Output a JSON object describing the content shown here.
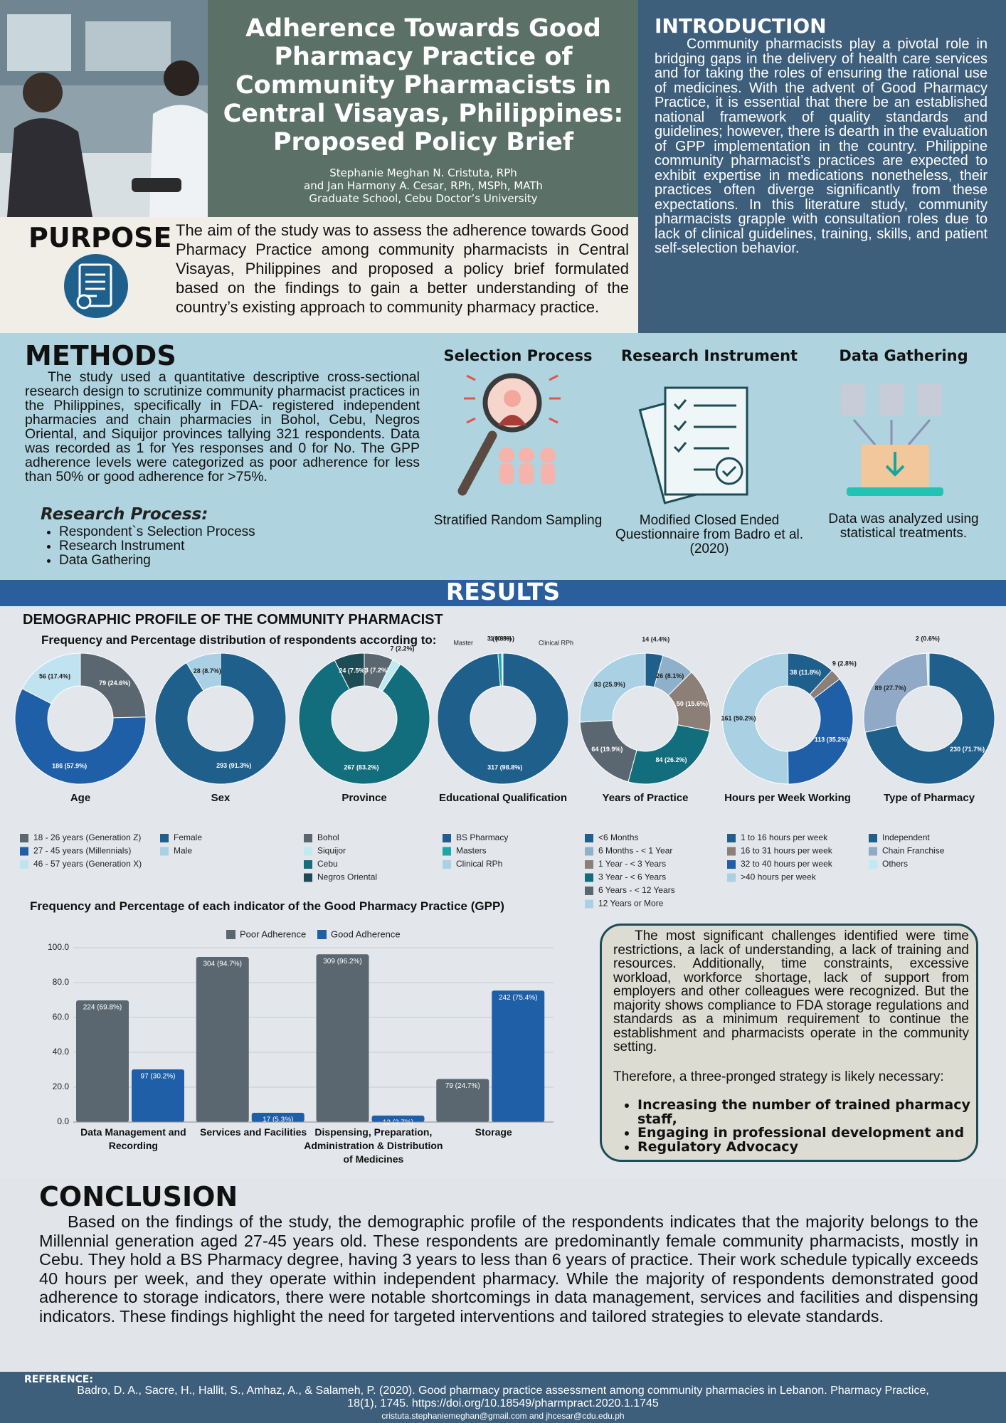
{
  "header": {
    "title": "Adherence Towards Good Pharmacy Practice of Community Pharmacists in Central Visayas, Philippines: Proposed Policy Brief",
    "authors": [
      "Stephanie Meghan N. Cristuta, RPh",
      "and Jan Harmony A. Cesar, RPh, MSPh, MATh",
      "Graduate School, Cebu Doctor’s University"
    ]
  },
  "introduction": {
    "heading": "INTRODUCTION",
    "text": "Community pharmacists play a pivotal role in bridging gaps in the delivery  of health care services and for taking the roles of ensuring the rational use of medicines. With the advent of Good Pharmacy Practice, it is essential that there be an established national framework of quality standards and guidelines; however, there is dearth in the evaluation of GPP implementation in the country. Philippine community pharmacist’s practices are expected to exhibit expertise in medications nonetheless, their practices often diverge significantly from these expectations. In this literature study, community pharmacists grapple with consultation roles due to lack of clinical guidelines, training, skills, and patient self-selection behavior."
  },
  "purpose": {
    "heading": "PURPOSE",
    "text": "The aim of the study was to assess the adherence towards Good Pharmacy Practice among community pharmacists in Central Visayas, Philippines and proposed a policy brief formulated based on the findings to gain a better understanding of the country’s existing approach to community pharmacy practice."
  },
  "methods": {
    "heading": "METHODS",
    "text": "The study used a quantitative descriptive cross-sectional research design to  scrutinize community pharmacist practices in the Philippines, specifically in FDA- registered independent pharmacies and chain pharmacies in Bohol, Cebu, Negros Oriental, and Siquijor provinces tallying 321 respondents. Data was recorded as 1 for Yes responses and 0 for No. The GPP adherence levels were categorized as poor adherence for less than 50% or good adherence for >75%.",
    "research_process": {
      "heading": "Research Process:",
      "items": [
        "Respondent`s Selection Process",
        "Research Instrument",
        "Data Gathering"
      ]
    },
    "panels": [
      {
        "heading": "Selection Process",
        "caption": "Stratified Random Sampling"
      },
      {
        "heading": "Research Instrument",
        "caption": "Modified Closed Ended Questionnaire from Badro et al. (2020)"
      },
      {
        "heading": "Data Gathering",
        "caption": "Data was analyzed using statistical treatments."
      }
    ]
  },
  "results": {
    "heading": "RESULTS",
    "demographic_heading": "DEMOGRAPHIC PROFILE OF THE COMMUNITY PHARMACIST",
    "demographic_subheading": "Frequency and Percentage distribution of respondents according to:"
  },
  "chart_data": [
    {
      "type": "pie",
      "title": "Age",
      "categories": [
        "18 - 26 years (Generation Z)",
        "27 - 45 years (Millennials)",
        "46 - 57 years (Generation X)"
      ],
      "values": [
        79,
        186,
        56
      ],
      "value_labels": [
        "79 (24.6%)",
        "186 (57.9%)",
        "56 (17.4%)"
      ],
      "colors": [
        "#5b6770",
        "#1f5fa8",
        "#bfe3f0"
      ]
    },
    {
      "type": "pie",
      "title": "Sex",
      "categories": [
        "Female",
        "Male"
      ],
      "values": [
        293,
        28
      ],
      "value_labels": [
        "293 (91.3%)",
        "28 (8.7%)"
      ],
      "colors": [
        "#1f5f8b",
        "#a9d0e3"
      ]
    },
    {
      "type": "pie",
      "title": "Province",
      "categories": [
        "Bohol",
        "Siquijor",
        "Cebu",
        "Negros Oriental"
      ],
      "values": [
        23,
        7,
        267,
        24
      ],
      "value_labels": [
        "23 (7.2%)",
        "7 (2.2%)",
        "267 (83.2%)",
        "24 (7.5%)"
      ],
      "colors": [
        "#5b6770",
        "#bfeaf2",
        "#126e7c",
        "#1d4c55"
      ]
    },
    {
      "type": "pie",
      "title": "Educational Qualification",
      "categories": [
        "BS Pharmacy",
        "Masters",
        "Clinical RPh"
      ],
      "values": [
        317,
        3,
        1
      ],
      "value_labels": [
        "317 (98.8%)",
        "3 (0.9%)",
        "1 (0.3%)"
      ],
      "colors": [
        "#1f5f8b",
        "#1aa7a7",
        "#a9d0e3"
      ],
      "annotations": [
        "Master",
        "Clinical RPh"
      ]
    },
    {
      "type": "pie",
      "title": "Years of Practice",
      "categories": [
        "<6 Months",
        "6 Months - < 1 Year",
        "1 Year - < 3 Years",
        "3 Year - < 6 Years",
        "6 Years - < 12 Years",
        "12 Years or More"
      ],
      "values": [
        14,
        26,
        50,
        84,
        64,
        83
      ],
      "value_labels": [
        "14 (4.4%)",
        "26 (8.1%)",
        "50 (15.6%)",
        "84 (26.2%)",
        "64 (19.9%)",
        "83 (25.9%)"
      ],
      "colors": [
        "#1f5f8b",
        "#8fb0c9",
        "#8c7f77",
        "#126e7c",
        "#5b6770",
        "#a9d0e3"
      ]
    },
    {
      "type": "pie",
      "title": "Hours per Week Working",
      "categories": [
        "1 to 16 hours per week",
        "16 to 31 hours per week",
        "32 to 40 hours per week",
        ">40 hours per week"
      ],
      "values": [
        38,
        9,
        113,
        161
      ],
      "value_labels": [
        "38 (11.8%)",
        "9 (2.8%)",
        "113 (35.2%)",
        "161 (50.2%)"
      ],
      "colors": [
        "#1f5f8b",
        "#8c7f77",
        "#1f5fa8",
        "#a9d0e3"
      ]
    },
    {
      "type": "pie",
      "title": "Type of Pharmacy",
      "categories": [
        "Independent",
        "Chain Franchise",
        "Others"
      ],
      "values": [
        230,
        89,
        2
      ],
      "value_labels": [
        "230 (71.7%)",
        "89 (27.7%)",
        "2 (0.6%)"
      ],
      "colors": [
        "#1f5f8b",
        "#8fa9c6",
        "#bfeaf5"
      ]
    },
    {
      "type": "bar",
      "title": "Frequency and Percentage of each indicator of the Good Pharmacy Practice (GPP)",
      "categories": [
        "Data Management and Recording",
        "Services and Facilities",
        "Dispensing, Preparation, Administration & Distribution of Medicines",
        "Storage"
      ],
      "series": [
        {
          "name": "Poor Adherence",
          "color": "#5b6770",
          "values": [
            69.8,
            94.7,
            96.2,
            24.7
          ],
          "value_labels": [
            "224 (69.8%)",
            "304 (94.7%)",
            "309 (96.2%)",
            "79 (24.7%)"
          ]
        },
        {
          "name": "Good Adherence",
          "color": "#1f5fa8",
          "values": [
            30.2,
            5.3,
            3.7,
            75.4
          ],
          "value_labels": [
            "97 (30.2%)",
            "17 (5.3%)",
            "12 (3.7%)",
            "242 (75.4%)"
          ]
        }
      ],
      "ylim": [
        0,
        100
      ],
      "yticks": [
        {
          "value": 0,
          "label": "0.0"
        },
        {
          "value": 20,
          "label": "20.0"
        },
        {
          "value": 40,
          "label": "40.0"
        },
        {
          "value": 60,
          "label": "60.0"
        },
        {
          "value": 80,
          "label": "80.0"
        },
        {
          "value": 100,
          "label": "100.0"
        }
      ],
      "grid": true,
      "legend": "top"
    }
  ],
  "summary": {
    "text": "The most significant challenges identified were time restrictions, a lack of understanding, a lack of training and resources. Additionally, time constraints, excessive workload, workforce shortage, lack of support from employers and other colleagues were recognized. But the majority shows compliance to FDA storage regulations and standards as a minimum requirement to continue the establishment and pharmacists operate in the community setting.",
    "lead": "Therefore, a three-pronged strategy is likely necessary:",
    "items": [
      "Increasing the number of trained pharmacy staff,",
      "Engaging in professional development and",
      "Regulatory Advocacy"
    ]
  },
  "conclusion": {
    "heading": "CONCLUSION",
    "text": "Based on the findings of the study, the demographic profile of the respondents indicates that the majority belongs to the Millennial generation aged 27-45 years old. These respondents are predominantly female community pharmacists, mostly in Cebu. They hold a BS Pharmacy degree, having 3 years to less than 6 years of practice. Their work schedule typically exceeds 40 hours per week, and they operate within independent pharmacy. While the majority of respondents demonstrated good adherence to storage indicators, there were notable shortcomings in data management, services and facilities and dispensing indicators. These findings highlight the need for targeted interventions and tailored strategies to elevate standards."
  },
  "reference": {
    "heading": "REFERENCE:",
    "citation": "Badro, D. A., Sacre, H., Hallit, S., Amhaz, A., & Salameh, P. (2020). Good pharmacy practice assessment among community pharmacies in Lebanon. Pharmacy Practice, 18(1), 1745.   https://doi.org/10.18549/pharmpract.2020.1.1745",
    "contact": "cristuta.stephaniemeghan@gmail.com and jhcesar@cdu.edu.ph"
  }
}
